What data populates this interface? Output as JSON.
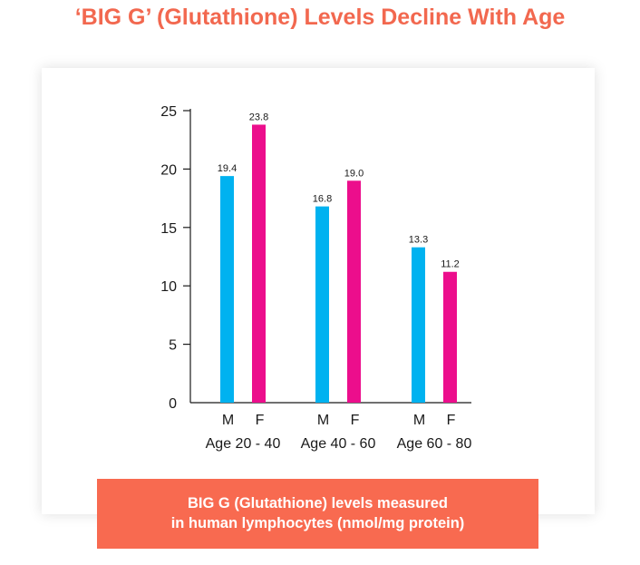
{
  "title": "‘BIG G’ (Glutathione) Levels Decline With Age",
  "caption": {
    "line1": "BIG G (Glutathione) levels measured",
    "line2": "in human lymphocytes (nmol/mg protein)"
  },
  "chart_data": {
    "type": "bar",
    "categories": [
      "Age 20 - 40",
      "Age 40 - 60",
      "Age 60 - 80"
    ],
    "series": [
      {
        "name": "M",
        "color": "#00b2f0",
        "values": [
          19.4,
          16.8,
          13.3
        ],
        "labels": [
          "19.4",
          "16.8",
          "13.3"
        ]
      },
      {
        "name": "F",
        "color": "#ec0e8c",
        "values": [
          23.8,
          19.0,
          11.2
        ],
        "labels": [
          "23.8",
          "19.0",
          "11.2"
        ]
      }
    ],
    "yticks": [
      0,
      5,
      10,
      15,
      20,
      25
    ],
    "ylim": [
      0,
      25
    ],
    "grid": false,
    "xlabel": "",
    "ylabel": ""
  }
}
